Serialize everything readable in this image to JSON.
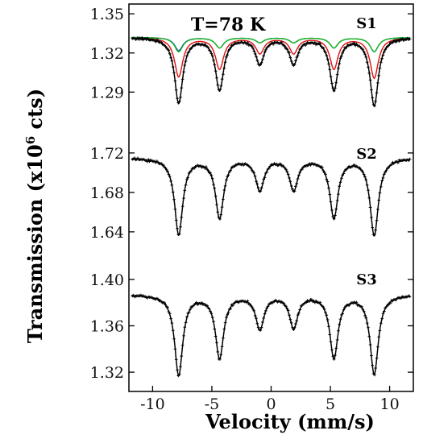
{
  "chart_data": {
    "type": "line",
    "title": "",
    "annotation": "T=78 K",
    "xlabel": "Velocity (mm/s)",
    "ylabel_main": "Transmission (x10",
    "ylabel_sup": "6",
    "ylabel_tail": " cts)",
    "xlim": [
      -12,
      12
    ],
    "x_ticks": [
      -10,
      -5,
      0,
      5,
      10
    ],
    "line_centers": [
      -7.8,
      -4.35,
      -0.95,
      1.9,
      5.3,
      8.7
    ],
    "panels": [
      {
        "name": "S1",
        "ylim": [
          1.2575,
          1.3575
        ],
        "y_ticks": [
          1.29,
          1.32,
          1.35
        ],
        "baseline": 1.332,
        "depths": [
          0.05,
          0.04,
          0.02,
          0.02,
          0.04,
          0.052
        ],
        "components": [
          {
            "name": "red",
            "color": "#e01010",
            "depths": [
              0.03,
              0.024,
              0.012,
              0.012,
              0.024,
              0.031
            ]
          },
          {
            "name": "blue",
            "color": "#1a3fe0",
            "depths": [
              0.01,
              0.008,
              0.004,
              0.004,
              0.008,
              0.011
            ]
          },
          {
            "name": "green",
            "color": "#18b818",
            "depths": [
              0.011,
              0.008,
              0.004,
              0.004,
              0.008,
              0.011
            ]
          }
        ]
      },
      {
        "name": "S2",
        "ylim": [
          1.6113,
          1.7387
        ],
        "y_ticks": [
          1.64,
          1.68,
          1.72
        ],
        "baseline": 1.715,
        "depths": [
          0.077,
          0.06,
          0.032,
          0.032,
          0.06,
          0.078
        ]
      },
      {
        "name": "S3",
        "ylim": [
          1.3034,
          1.4166
        ],
        "y_ticks": [
          1.32,
          1.36,
          1.4
        ],
        "baseline": 1.387,
        "depths": [
          0.069,
          0.054,
          0.029,
          0.028,
          0.054,
          0.068
        ]
      }
    ]
  }
}
